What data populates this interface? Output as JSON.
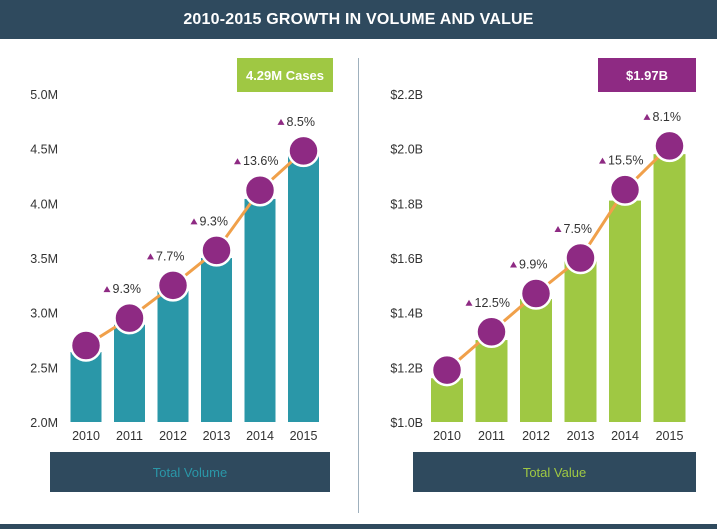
{
  "title": "2010-2015 GROWTH IN VOLUME AND VALUE",
  "colors": {
    "header": "#2f4a5e",
    "volume_bar": "#2a97a8",
    "value_bar": "#9fc843",
    "marker": "#8e2a83",
    "line": "#f0a04a",
    "badge_purple": "#8e2a83",
    "badge_green": "#9fc843"
  },
  "chart_data": [
    {
      "type": "bar",
      "title": "Total Volume",
      "badge": "4.29M Cases",
      "categories": [
        "2010",
        "2011",
        "2012",
        "2013",
        "2014",
        "2015"
      ],
      "values": [
        2.64,
        2.89,
        3.2,
        3.5,
        4.04,
        4.43
      ],
      "line_values": [
        2.7,
        2.95,
        3.25,
        3.57,
        4.12,
        4.48
      ],
      "growth_labels": [
        "",
        "9.3%",
        "7.7%",
        "9.3%",
        "13.6%",
        "8.5%"
      ],
      "yticks": [
        "5.0M",
        "4.5M",
        "4.0M",
        "3.5M",
        "3.0M",
        "2.5M",
        "2.0M"
      ],
      "ylim": [
        2.0,
        5.0
      ]
    },
    {
      "type": "bar",
      "title": "Total Value",
      "badge": "$1.97B",
      "categories": [
        "2010",
        "2011",
        "2012",
        "2013",
        "2014",
        "2015"
      ],
      "values": [
        1.16,
        1.3,
        1.45,
        1.59,
        1.81,
        1.98
      ],
      "line_values": [
        1.19,
        1.33,
        1.47,
        1.6,
        1.85,
        2.01
      ],
      "growth_labels": [
        "",
        "12.5%",
        "9.9%",
        "7.5%",
        "15.5%",
        "8.1%"
      ],
      "yticks": [
        "$2.2B",
        "$2.0B",
        "$1.8B",
        "$1.6B",
        "$1.4B",
        "$1.2B",
        "$1.0B"
      ],
      "ylim": [
        1.0,
        2.2
      ]
    }
  ]
}
